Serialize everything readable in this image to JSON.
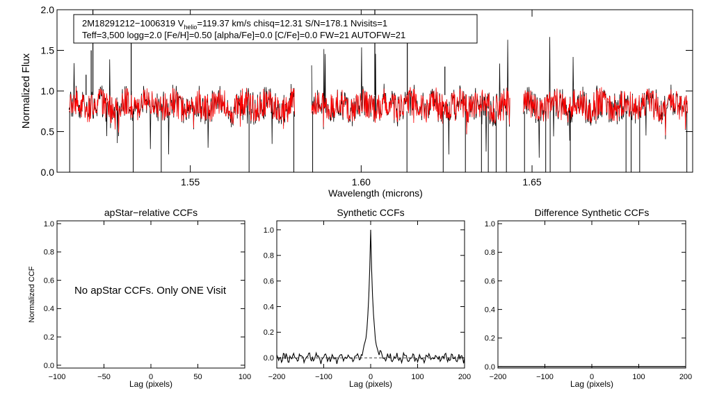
{
  "chart_data": [
    {
      "type": "line",
      "title": "",
      "info_line1_prefix": "2M18291212−1006319  V",
      "info_line1_sub": "helio",
      "info_line1_suffix": "=119.37 km/s  chisq=12.31  S/N=178.1  Nvisits=1",
      "info_line2": "Teff=3,500 logg=2.0 [Fe/H]=0.50 [alpha/Fe]=0.0 [C/Fe]=0.0 FW=21 AUTOFW=21",
      "xlabel": "Wavelength (microns)",
      "ylabel": "Normalized Flux",
      "xlim": [
        1.511,
        1.697
      ],
      "ylim": [
        0.0,
        2.0
      ],
      "xticks": [
        1.55,
        1.6,
        1.65
      ],
      "xtick_labels": [
        "1.55",
        "1.60",
        "1.65"
      ],
      "yticks": [
        0.0,
        0.5,
        1.0,
        1.5,
        2.0
      ],
      "ytick_labels": [
        "0.0",
        "0.5",
        "1.0",
        "1.5",
        "2.0"
      ],
      "chips": [
        [
          1.5145,
          1.5805
        ],
        [
          1.5855,
          1.6435
        ],
        [
          1.6475,
          1.6955
        ]
      ],
      "series": [
        {
          "name": "",
          "color": "#000000",
          "role": "observed"
        },
        {
          "name": "",
          "color": "#ff0000",
          "role": "model"
        }
      ]
    },
    {
      "type": "line",
      "title": "apStar−relative CCFs",
      "xlabel": "Lag (pixels)",
      "ylabel": "Normalized CCF",
      "xlim": [
        -100,
        100
      ],
      "ylim": [
        -0.02,
        1.02
      ],
      "xticks": [
        -100,
        -50,
        0,
        50,
        100
      ],
      "xtick_labels": [
        "−100",
        "−50",
        "0",
        "50",
        "100"
      ],
      "yticks": [
        0.0,
        0.2,
        0.4,
        0.6,
        0.8,
        1.0
      ],
      "ytick_labels": [
        "0.0",
        "0.2",
        "0.4",
        "0.6",
        "0.8",
        "1.0"
      ],
      "annotation": "No apStar CCFs.  Only ONE Visit"
    },
    {
      "type": "line",
      "title": "Synthetic CCFs",
      "xlabel": "Lag (pixels)",
      "ylabel": "",
      "xlim": [
        -200,
        200
      ],
      "ylim": [
        -0.08,
        1.07
      ],
      "xticks": [
        -200,
        -100,
        0,
        100,
        200
      ],
      "xtick_labels": [
        "−200",
        "−100",
        "0",
        "100",
        "200"
      ],
      "yticks": [
        0.0,
        0.2,
        0.4,
        0.6,
        0.8,
        1.0
      ],
      "ytick_labels": [
        "0.0",
        "0.2",
        "0.4",
        "0.6",
        "0.8",
        "1.0"
      ],
      "peak": {
        "x": 0,
        "y": 1.0
      },
      "baseline_dashed": 0.0
    },
    {
      "type": "line",
      "title": "Difference Synthetic CCFs",
      "xlabel": "Lag (pixels)",
      "ylabel": "",
      "xlim": [
        -200,
        200
      ],
      "ylim": [
        -0.01,
        1.02
      ],
      "xticks": [
        -200,
        -100,
        0,
        100,
        200
      ],
      "xtick_labels": [
        "−200",
        "−100",
        "0",
        "100",
        "200"
      ],
      "yticks": [
        0.0,
        0.2,
        0.4,
        0.6,
        0.8,
        1.0
      ],
      "ytick_labels": [
        "0.0",
        "0.2",
        "0.4",
        "0.6",
        "0.8",
        "1.0"
      ],
      "flat_value": 0.0
    }
  ]
}
